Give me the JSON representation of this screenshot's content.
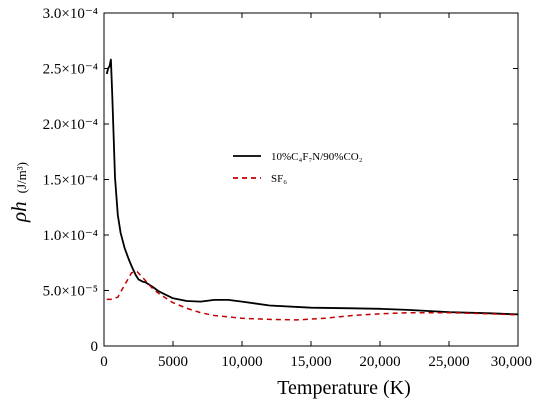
{
  "chart_data": {
    "type": "line",
    "xlabel": "Temperature (K)",
    "ylabel_main": "ρh",
    "ylabel_unit": "(J/m³)",
    "xlim": [
      0,
      30000
    ],
    "ylim": [
      0,
      0.0003
    ],
    "x_ticks": [
      0,
      5000,
      10000,
      15000,
      20000,
      25000,
      30000
    ],
    "x_tick_labels": [
      "0",
      "5000",
      "10,000",
      "15,000",
      "20,000",
      "25,000",
      "30,000"
    ],
    "y_ticks": [
      0,
      5e-05,
      0.0001,
      0.00015,
      0.0002,
      0.00025,
      0.0003
    ],
    "y_tick_labels": [
      "0",
      "5.0×10⁻⁵",
      "1.0×10⁻⁴",
      "1.5×10⁻⁴",
      "2.0×10⁻⁴",
      "2.5×10⁻⁴",
      "3.0×10⁻⁴"
    ],
    "grid": false,
    "legend_position": "center-right",
    "series": [
      {
        "name": "10%C₄F₇N/90%CO₂",
        "style": "solid",
        "color": "#000000",
        "x": [
          200,
          300,
          400,
          500,
          600,
          800,
          1000,
          1200,
          1500,
          1800,
          2000,
          2300,
          2500,
          2800,
          3000,
          3500,
          4000,
          5000,
          6000,
          7000,
          8000,
          9000,
          10000,
          12000,
          15000,
          18000,
          20000,
          22000,
          25000,
          28000,
          30000
        ],
        "y": [
          0.000245,
          0.00025,
          0.000252,
          0.000258,
          0.000225,
          0.000152,
          0.000118,
          0.000102,
          8.8e-05,
          7.8e-05,
          7.2e-05,
          6.4e-05,
          6e-05,
          5.8e-05,
          5.75e-05,
          5.35e-05,
          4.9e-05,
          4.3e-05,
          4.05e-05,
          4e-05,
          4.15e-05,
          4.15e-05,
          4e-05,
          3.65e-05,
          3.45e-05,
          3.4e-05,
          3.35e-05,
          3.25e-05,
          3.05e-05,
          2.95e-05,
          2.85e-05
        ]
      },
      {
        "name": "SF₆",
        "style": "dashed",
        "color": "#c00000",
        "x": [
          200,
          500,
          1000,
          1500,
          2000,
          2400,
          3000,
          3500,
          4000,
          5000,
          6000,
          7000,
          8000,
          10000,
          12000,
          14000,
          16000,
          18000,
          20000,
          22000,
          25000,
          28000,
          30000
        ],
        "y": [
          4.2e-05,
          4.2e-05,
          4.4e-05,
          5.5e-05,
          6.6e-05,
          6.7e-05,
          5.9e-05,
          5.2e-05,
          4.7e-05,
          3.9e-05,
          3.4e-05,
          3e-05,
          2.75e-05,
          2.5e-05,
          2.4e-05,
          2.35e-05,
          2.5e-05,
          2.75e-05,
          2.9e-05,
          3e-05,
          3e-05,
          2.9e-05,
          2.8e-05
        ]
      }
    ]
  }
}
